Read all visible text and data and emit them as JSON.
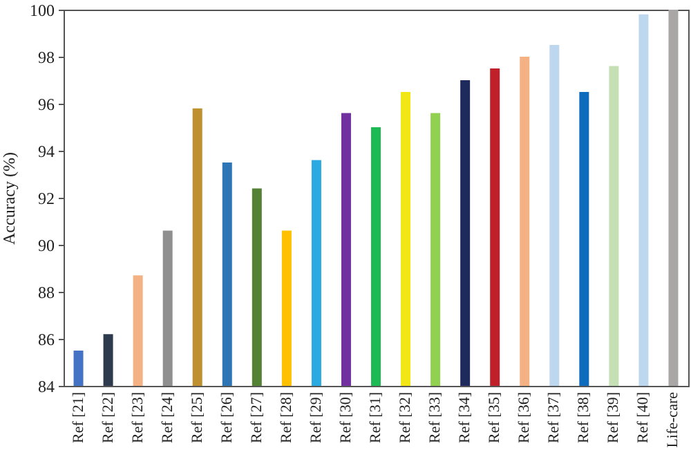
{
  "chart_data": {
    "type": "bar",
    "ylabel": "Accuracy (%)",
    "categories": [
      "Ref [21]",
      "Ref [22]",
      "Ref [23]",
      "Ref [24]",
      "Ref [25]",
      "Ref [26]",
      "Ref [27]",
      "Ref [28]",
      "Ref [29]",
      "Ref [30]",
      "Ref [31]",
      "Ref [32]",
      "Ref [33]",
      "Ref [34]",
      "Ref [35]",
      "Ref [36]",
      "Ref [37]",
      "Ref [38]",
      "Ref [39]",
      "Ref [40]",
      "Life-care"
    ],
    "values": [
      85.5,
      86.2,
      88.7,
      90.6,
      95.8,
      93.5,
      92.4,
      90.6,
      93.6,
      95.6,
      95.0,
      96.5,
      95.6,
      97.0,
      97.5,
      98.0,
      98.5,
      96.5,
      97.6,
      99.8,
      100
    ],
    "colors": [
      "#4472c4",
      "#2e3a4d",
      "#f4b183",
      "#8f8f8f",
      "#bf9030",
      "#2e75b6",
      "#548235",
      "#ffc000",
      "#29abe2",
      "#7030a0",
      "#1db954",
      "#f2e614",
      "#92d050",
      "#1f2a5c",
      "#c0202a",
      "#f4b183",
      "#bdd7ee",
      "#0f6cbd",
      "#c5e0b4",
      "#bdd7ee",
      "#aaa6a6"
    ],
    "ylim": [
      84,
      100
    ],
    "yticks": [
      84,
      86,
      88,
      90,
      92,
      94,
      96,
      98,
      100
    ],
    "grid": false
  }
}
